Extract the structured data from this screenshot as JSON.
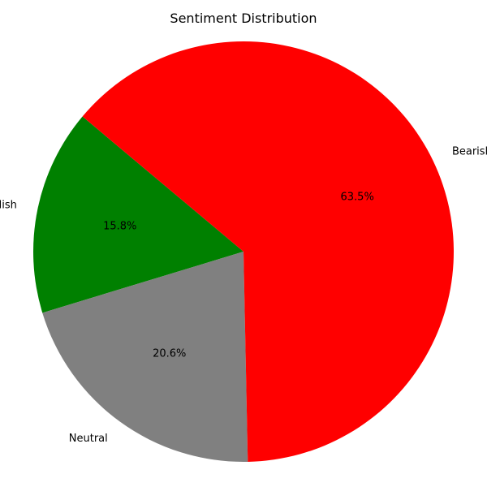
{
  "chart_data": {
    "type": "pie",
    "title": "Sentiment Distribution",
    "categories": [
      "Bullish",
      "Neutral",
      "Bearish"
    ],
    "values": [
      15.8,
      20.6,
      63.5
    ],
    "value_labels": [
      "15.8%",
      "20.6%",
      "63.5%"
    ],
    "colors": [
      "#008000",
      "#808080",
      "#ff0000"
    ],
    "start_angle_deg": 140,
    "direction": "counterclockwise",
    "legend": "none"
  }
}
